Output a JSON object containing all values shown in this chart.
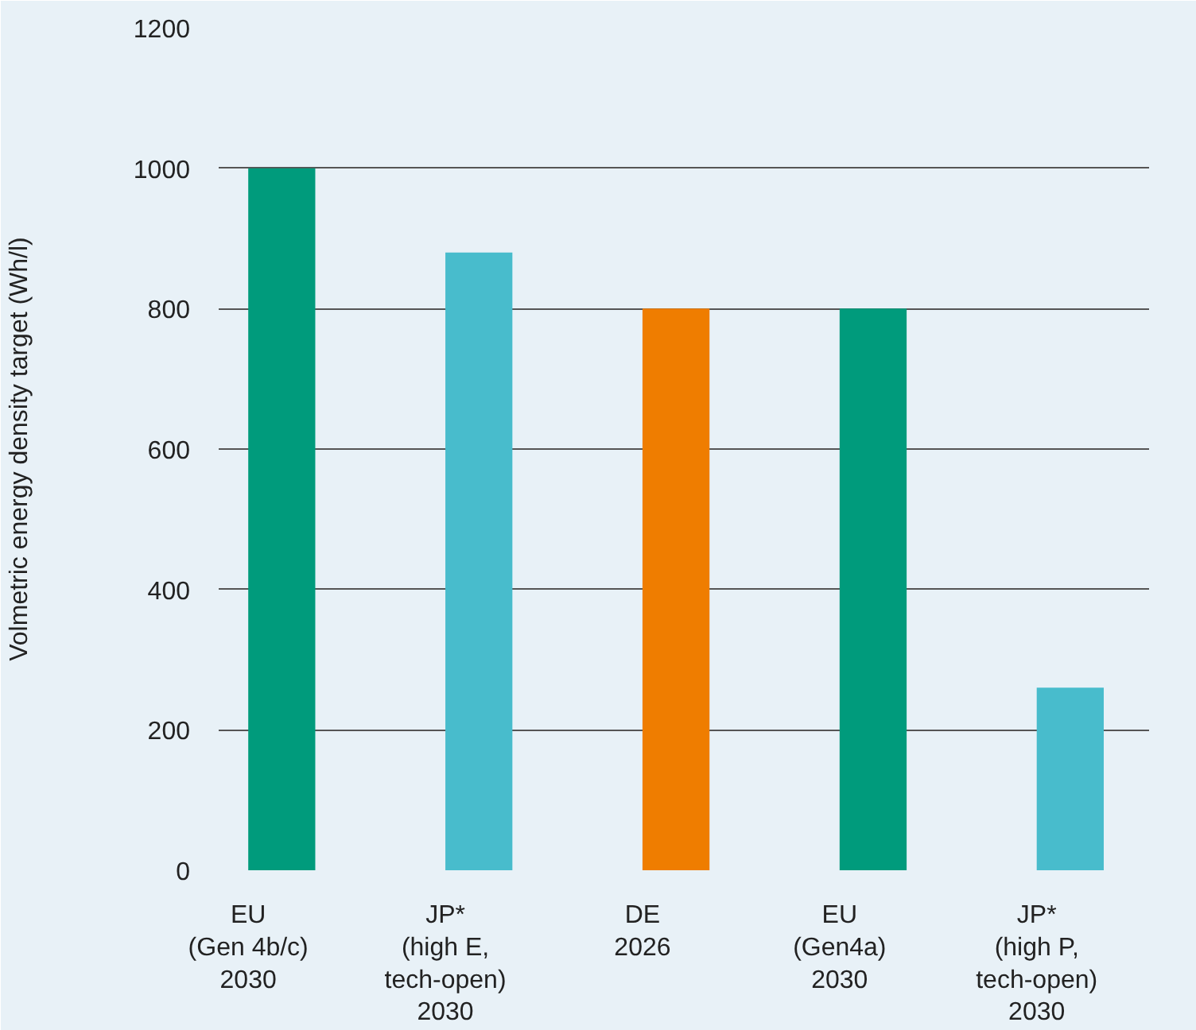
{
  "chart_data": {
    "type": "bar",
    "ylabel": "Volmetric energy density target (Wh/l)",
    "categories": [
      "EU\n(Gen 4b/c)\n2030",
      "JP*\n(high E,\ntech-open)\n2030",
      "DE\n2026",
      "EU\n(Gen4a)\n2030",
      "JP*\n(high P,\ntech-open)\n2030"
    ],
    "values": [
      1000,
      880,
      800,
      800,
      260
    ],
    "colors": [
      "#009b7c",
      "#48bccc",
      "#ef7d00",
      "#009b7c",
      "#48bccc"
    ],
    "ylim": [
      0,
      1200
    ],
    "yticks": [
      0,
      200,
      400,
      600,
      800,
      1000,
      1200
    ],
    "grid": "y"
  }
}
